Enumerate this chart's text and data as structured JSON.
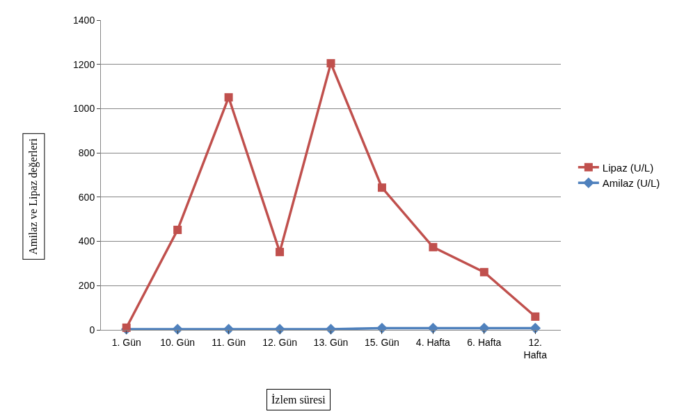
{
  "chart_data": {
    "type": "line",
    "xlabel": "İzlem süresi",
    "ylabel": "Amilaz ve Lipaz değerleri",
    "categories": [
      "1. Gün",
      "10. Gün",
      "11. Gün",
      "12. Gün",
      "13. Gün",
      "15. Gün",
      "4. Hafta",
      "6. Hafta",
      "12. Hafta"
    ],
    "series": [
      {
        "name": "Lipaz (U/L)",
        "color": "#c0504d",
        "marker": "square",
        "values": [
          10,
          452,
          1051,
          352,
          1205,
          643,
          374,
          261,
          60
        ]
      },
      {
        "name": "Amilaz (U/L)",
        "color": "#4f81bd",
        "marker": "diamond",
        "values": [
          3,
          3,
          3,
          3,
          3,
          8,
          8,
          8,
          8
        ]
      }
    ],
    "ylim": [
      0,
      1400
    ],
    "yticks": [
      0,
      200,
      400,
      600,
      800,
      1000,
      1200,
      1400
    ],
    "grid": "y",
    "legend": "right",
    "line_style": "solid"
  }
}
